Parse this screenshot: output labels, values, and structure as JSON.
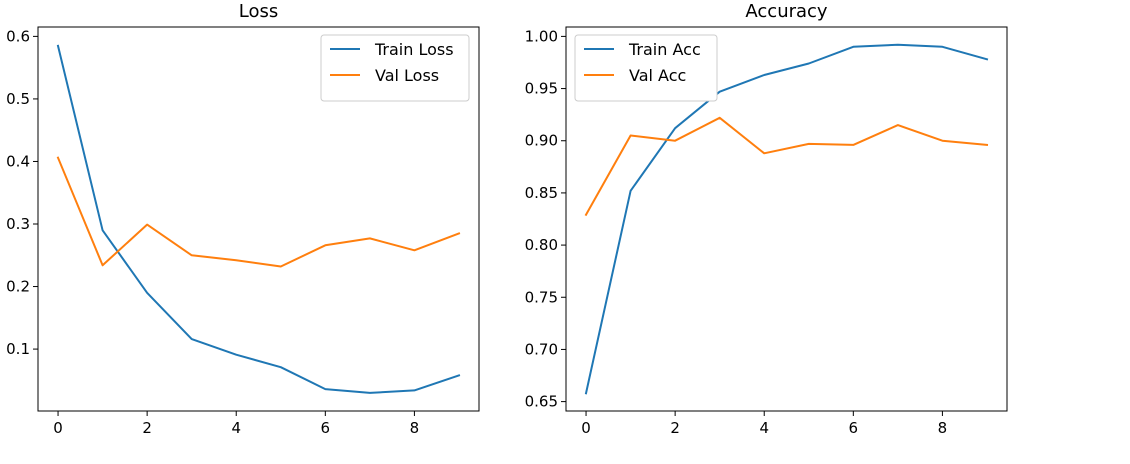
{
  "colors": {
    "train": "#1f77b4",
    "val": "#ff7f0e"
  },
  "chart_data": [
    {
      "type": "line",
      "title": "Loss",
      "xlabel": "",
      "ylabel": "",
      "x": [
        0,
        1,
        2,
        3,
        4,
        5,
        6,
        7,
        8,
        9
      ],
      "xlim": [
        -0.45,
        9.45
      ],
      "ylim": [
        0.001,
        0.615
      ],
      "xticks": [
        0,
        2,
        4,
        6,
        8
      ],
      "xtick_labels": [
        "0",
        "2",
        "4",
        "6",
        "8"
      ],
      "yticks": [
        0.1,
        0.2,
        0.3,
        0.4,
        0.5,
        0.6
      ],
      "ytick_labels": [
        "0.1",
        "0.2",
        "0.3",
        "0.4",
        "0.5",
        "0.6"
      ],
      "grid": false,
      "legend_position": "top-right",
      "series": [
        {
          "name": "Train Loss",
          "color_key": "train",
          "values": [
            0.585,
            0.29,
            0.19,
            0.116,
            0.091,
            0.071,
            0.036,
            0.03,
            0.034,
            0.058
          ]
        },
        {
          "name": "Val Loss",
          "color_key": "val",
          "values": [
            0.406,
            0.234,
            0.299,
            0.25,
            0.242,
            0.232,
            0.266,
            0.277,
            0.258,
            0.285
          ]
        }
      ]
    },
    {
      "type": "line",
      "title": "Accuracy",
      "xlabel": "",
      "ylabel": "",
      "x": [
        0,
        1,
        2,
        3,
        4,
        5,
        6,
        7,
        8,
        9
      ],
      "xlim": [
        -0.45,
        9.45
      ],
      "ylim": [
        0.641,
        1.009
      ],
      "xticks": [
        0,
        2,
        4,
        6,
        8
      ],
      "xtick_labels": [
        "0",
        "2",
        "4",
        "6",
        "8"
      ],
      "yticks": [
        0.65,
        0.7,
        0.75,
        0.8,
        0.85,
        0.9,
        0.95,
        1.0
      ],
      "ytick_labels": [
        "0.65",
        "0.70",
        "0.75",
        "0.80",
        "0.85",
        "0.90",
        "0.95",
        "1.00"
      ],
      "grid": false,
      "legend_position": "top-left",
      "series": [
        {
          "name": "Train Acc",
          "color_key": "train",
          "values": [
            0.658,
            0.852,
            0.912,
            0.947,
            0.963,
            0.974,
            0.99,
            0.992,
            0.99,
            0.978
          ]
        },
        {
          "name": "Val Acc",
          "color_key": "val",
          "values": [
            0.829,
            0.905,
            0.9,
            0.922,
            0.888,
            0.897,
            0.896,
            0.915,
            0.9,
            0.896
          ]
        }
      ]
    }
  ]
}
